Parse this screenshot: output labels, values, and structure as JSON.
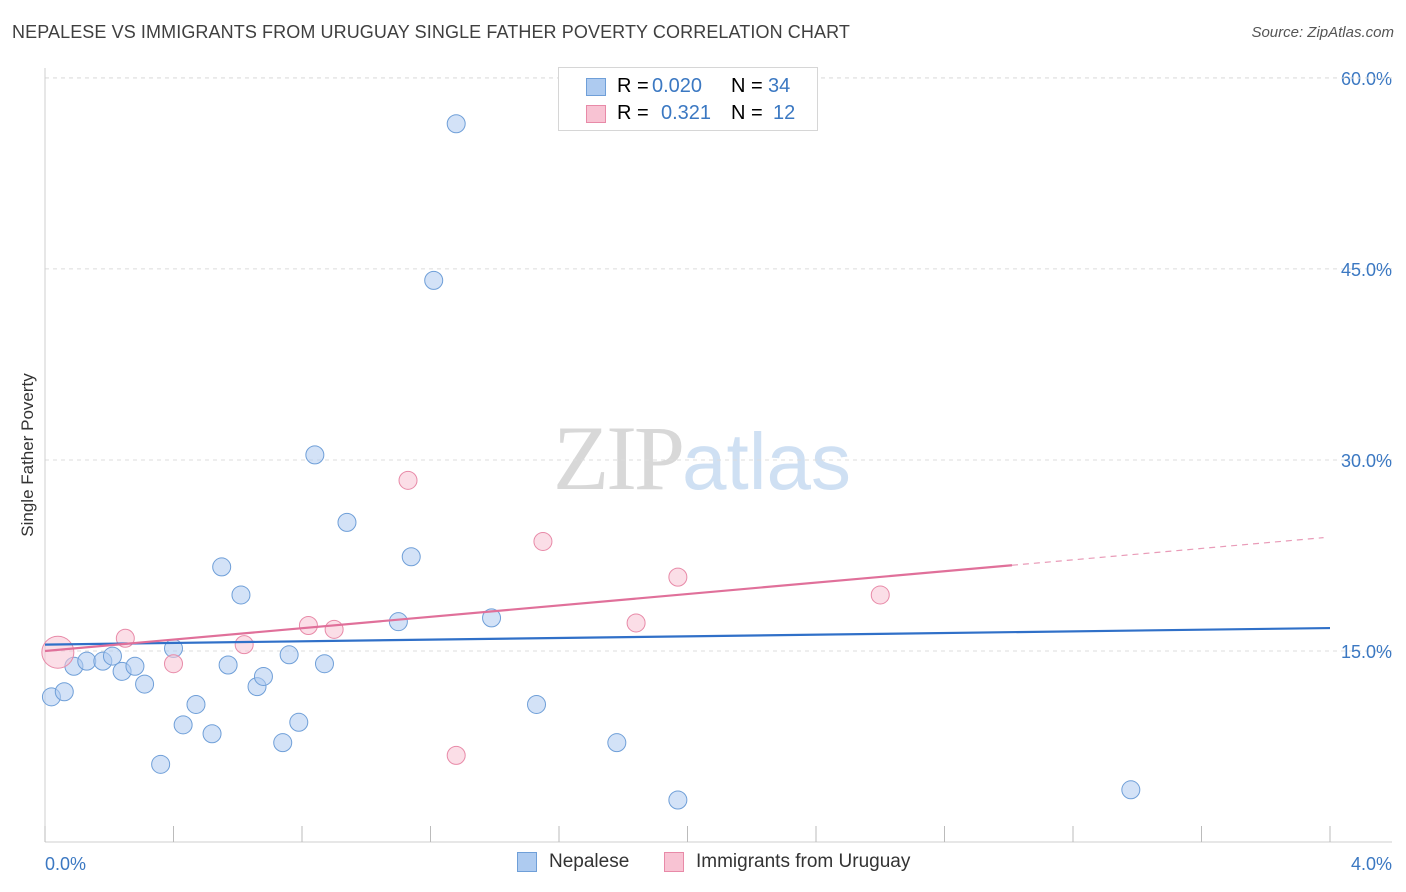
{
  "header": {
    "title": "NEPALESE VS IMMIGRANTS FROM URUGUAY SINGLE FATHER POVERTY CORRELATION CHART",
    "source": "Source: ZipAtlas.com"
  },
  "watermark": {
    "zip": "ZIP",
    "atlas": "atlas"
  },
  "legend_top": {
    "rows": [
      {
        "r_label": "R =",
        "r_value": "0.020",
        "n_label": "N =",
        "n_value": "34",
        "color": "#aecbf0",
        "border": "#6f9fd8"
      },
      {
        "r_label": "R =",
        "r_value": "0.321",
        "n_label": "N =",
        "n_value": "12",
        "color": "#f8c3d3",
        "border": "#e88aa8"
      }
    ]
  },
  "legend_bottom": {
    "items": [
      {
        "label": "Nepalese",
        "color": "#aecbf0",
        "border": "#6f9fd8"
      },
      {
        "label": "Immigrants from Uruguay",
        "color": "#f8c3d3",
        "border": "#e88aa8"
      }
    ]
  },
  "chart_data": {
    "type": "scatter",
    "title": "NEPALESE VS IMMIGRANTS FROM URUGUAY SINGLE FATHER POVERTY CORRELATION CHART",
    "xlabel": "",
    "ylabel": "Single Father Poverty",
    "xlim": [
      0,
      4
    ],
    "ylim": [
      0,
      62
    ],
    "x_tick_labels": [
      "0.0%",
      "4.0%"
    ],
    "y_ticks": [
      15,
      30,
      45,
      60
    ],
    "y_tick_labels": [
      "15.0%",
      "30.0%",
      "45.0%",
      "60.0%"
    ],
    "grid": true,
    "legend": "top-center",
    "series": [
      {
        "name": "Nepalese",
        "color": "#aecbf0",
        "stroke": "#6f9fd8",
        "line_color": "#3070c8",
        "trend": {
          "x": [
            0,
            4
          ],
          "y": [
            15.5,
            16.8
          ],
          "solid_until": 4
        },
        "points": [
          [
            0.02,
            11.4
          ],
          [
            0.06,
            11.8
          ],
          [
            0.09,
            13.8
          ],
          [
            0.13,
            14.2
          ],
          [
            0.18,
            14.2
          ],
          [
            0.21,
            14.6
          ],
          [
            0.24,
            13.4
          ],
          [
            0.28,
            13.8
          ],
          [
            0.31,
            12.4
          ],
          [
            0.36,
            6.1
          ],
          [
            0.4,
            15.2
          ],
          [
            0.43,
            9.2
          ],
          [
            0.47,
            10.8
          ],
          [
            0.52,
            8.5
          ],
          [
            0.55,
            21.6
          ],
          [
            0.57,
            13.9
          ],
          [
            0.61,
            19.4
          ],
          [
            0.66,
            12.2
          ],
          [
            0.68,
            13.0
          ],
          [
            0.74,
            7.8
          ],
          [
            0.76,
            14.7
          ],
          [
            0.79,
            9.4
          ],
          [
            0.84,
            30.4
          ],
          [
            0.87,
            14.0
          ],
          [
            0.94,
            25.1
          ],
          [
            1.1,
            17.3
          ],
          [
            1.14,
            22.4
          ],
          [
            1.21,
            44.1
          ],
          [
            1.28,
            56.4
          ],
          [
            1.39,
            17.6
          ],
          [
            1.53,
            10.8
          ],
          [
            1.78,
            7.8
          ],
          [
            1.97,
            3.3
          ],
          [
            3.38,
            4.1
          ]
        ]
      },
      {
        "name": "Immigrants from Uruguay",
        "color": "#f8c3d3",
        "stroke": "#e88aa8",
        "line_color": "#e0709a",
        "trend": {
          "x": [
            0,
            3.98
          ],
          "y": [
            15.0,
            23.9
          ],
          "solid_until": 3.01
        },
        "points": [
          [
            0.04,
            14.9
          ],
          [
            0.25,
            16.0
          ],
          [
            0.4,
            14.0
          ],
          [
            0.62,
            15.5
          ],
          [
            0.82,
            17.0
          ],
          [
            0.9,
            16.7
          ],
          [
            1.13,
            28.4
          ],
          [
            1.28,
            6.8
          ],
          [
            1.55,
            23.6
          ],
          [
            1.84,
            17.2
          ],
          [
            1.97,
            20.8
          ],
          [
            2.6,
            19.4
          ]
        ]
      }
    ]
  }
}
